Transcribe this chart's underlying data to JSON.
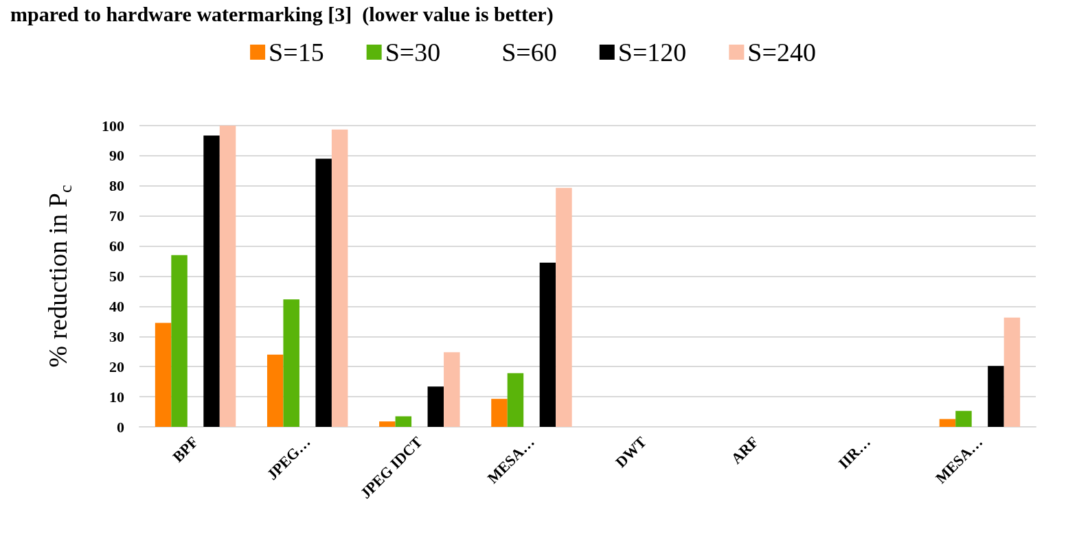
{
  "chart_data": {
    "type": "bar",
    "title": "mpared to hardware watermarking [3]  (lower value is better)",
    "ylabel": "% reduction in P$_{c}$",
    "categories": [
      "BPF",
      "JPEG…",
      "JPEG IDCT",
      "MESA…",
      "DWT",
      "ARF",
      "IIR…",
      "MESA…"
    ],
    "series": [
      {
        "name": "S=15",
        "color": "#ff8000",
        "values": [
          34.5,
          24.0,
          1.8,
          9.3,
          null,
          null,
          null,
          2.6
        ]
      },
      {
        "name": "S=30",
        "color": "#5ab40a",
        "values": [
          57.0,
          42.3,
          3.5,
          17.8,
          null,
          null,
          null,
          5.3
        ]
      },
      {
        "name": "S=60",
        "values": [
          null,
          null,
          null,
          null,
          null,
          null,
          null,
          null
        ]
      },
      {
        "name": "S=120",
        "color": "#000000",
        "values": [
          96.7,
          89.0,
          13.4,
          54.5,
          null,
          null,
          null,
          20.2
        ]
      },
      {
        "name": "S=240",
        "color": "#fcc0a8",
        "values": [
          100,
          98.7,
          24.8,
          79.3,
          null,
          null,
          null,
          36.3
        ]
      }
    ],
    "ylim": [
      0,
      100
    ],
    "yticks": [
      0,
      10,
      20,
      30,
      40,
      50,
      60,
      70,
      80,
      90,
      100
    ],
    "grid": "y",
    "legend": "top"
  }
}
